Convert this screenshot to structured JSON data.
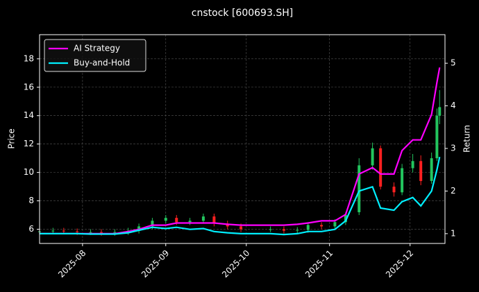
{
  "chart_data": {
    "type": "candlestick",
    "title": "cnstock [600693.SH]",
    "ylabel": "Price",
    "y2label": "Return",
    "x": [
      "2025-07-16",
      "2025-07-21",
      "2025-07-25",
      "2025-07-30",
      "2025-08-04",
      "2025-08-08",
      "2025-08-13",
      "2025-08-18",
      "2025-08-22",
      "2025-08-27",
      "2025-09-01",
      "2025-09-05",
      "2025-09-10",
      "2025-09-15",
      "2025-09-19",
      "2025-09-24",
      "2025-09-29",
      "2025-10-10",
      "2025-10-15",
      "2025-10-20",
      "2025-10-24",
      "2025-10-29",
      "2025-11-03",
      "2025-11-07",
      "2025-11-12",
      "2025-11-17",
      "2025-11-20",
      "2025-11-25",
      "2025-11-28",
      "2025-12-02",
      "2025-12-05",
      "2025-12-09",
      "2025-12-11",
      "2025-12-12"
    ],
    "open": [
      5.8,
      5.85,
      5.9,
      5.85,
      5.8,
      5.8,
      5.75,
      5.8,
      5.9,
      6.2,
      6.6,
      6.8,
      6.5,
      6.6,
      6.9,
      6.4,
      6.2,
      6.0,
      6.0,
      5.9,
      5.95,
      6.3,
      6.2,
      6.5,
      7.2,
      10.5,
      11.7,
      9.0,
      8.6,
      10.3,
      10.8,
      9.4,
      11.0,
      14.0
    ],
    "high": [
      6.05,
      6.1,
      6.1,
      6.05,
      6.0,
      6.0,
      6.0,
      6.1,
      6.4,
      6.8,
      7.0,
      7.0,
      6.8,
      7.1,
      7.1,
      6.6,
      6.4,
      6.2,
      6.2,
      6.15,
      6.5,
      6.5,
      6.7,
      7.2,
      11.0,
      12.1,
      11.9,
      9.3,
      10.6,
      11.3,
      11.2,
      11.4,
      14.5,
      15.8
    ],
    "low": [
      5.6,
      5.65,
      5.65,
      5.6,
      5.6,
      5.55,
      5.55,
      5.6,
      5.7,
      6.0,
      6.4,
      6.3,
      6.3,
      6.4,
      6.2,
      6.0,
      5.8,
      5.8,
      5.7,
      5.7,
      5.75,
      6.0,
      6.0,
      6.3,
      7.0,
      10.2,
      8.8,
      8.3,
      8.4,
      10.0,
      9.1,
      9.2,
      10.8,
      13.4
    ],
    "close": [
      5.85,
      5.9,
      5.85,
      5.8,
      5.8,
      5.75,
      5.8,
      5.9,
      6.2,
      6.6,
      6.8,
      6.5,
      6.6,
      6.9,
      6.4,
      6.2,
      6.0,
      6.0,
      5.9,
      5.95,
      6.3,
      6.2,
      6.5,
      7.0,
      10.5,
      11.7,
      9.0,
      8.6,
      10.3,
      10.8,
      9.4,
      11.0,
      14.0,
      14.6
    ],
    "up_color": "#22c55e",
    "down_color": "#ff2020",
    "series": [
      {
        "name": "AI Strategy",
        "color": "#ff00ff",
        "axis": "y2",
        "values": [
          1.0,
          1.0,
          1.0,
          1.0,
          1.0,
          1.0,
          1.0,
          1.05,
          1.1,
          1.2,
          1.2,
          1.25,
          1.25,
          1.25,
          1.25,
          1.22,
          1.2,
          1.2,
          1.2,
          1.22,
          1.25,
          1.3,
          1.3,
          1.45,
          2.4,
          2.55,
          2.4,
          2.4,
          2.95,
          3.2,
          3.2,
          3.8,
          4.55,
          4.9
        ]
      },
      {
        "name": "Buy-and-Hold",
        "color": "#00f0ff",
        "axis": "y2",
        "values": [
          1.0,
          1.0,
          1.0,
          1.0,
          0.99,
          0.99,
          0.99,
          1.02,
          1.08,
          1.15,
          1.12,
          1.15,
          1.1,
          1.12,
          1.05,
          1.02,
          1.0,
          1.0,
          0.98,
          1.0,
          1.05,
          1.05,
          1.1,
          1.3,
          2.0,
          2.1,
          1.6,
          1.55,
          1.75,
          1.85,
          1.65,
          2.0,
          2.5,
          2.8
        ]
      }
    ],
    "xlim": [
      "2025-07-16",
      "2025-12-14"
    ],
    "xticks": [
      {
        "value": "2025-08-01",
        "label": "2025-08"
      },
      {
        "value": "2025-09-01",
        "label": "2025-09"
      },
      {
        "value": "2025-10-01",
        "label": "2025-10"
      },
      {
        "value": "2025-11-01",
        "label": "2025-11"
      },
      {
        "value": "2025-12-01",
        "label": "2025-12"
      }
    ],
    "ylim": [
      5.0,
      19.7
    ],
    "yticks": [
      6,
      8,
      10,
      12,
      14,
      16,
      18
    ],
    "y2lim": [
      0.77,
      5.67
    ],
    "y2ticks": [
      1,
      2,
      3,
      4,
      5
    ],
    "grid": true,
    "legend": "upper left"
  }
}
